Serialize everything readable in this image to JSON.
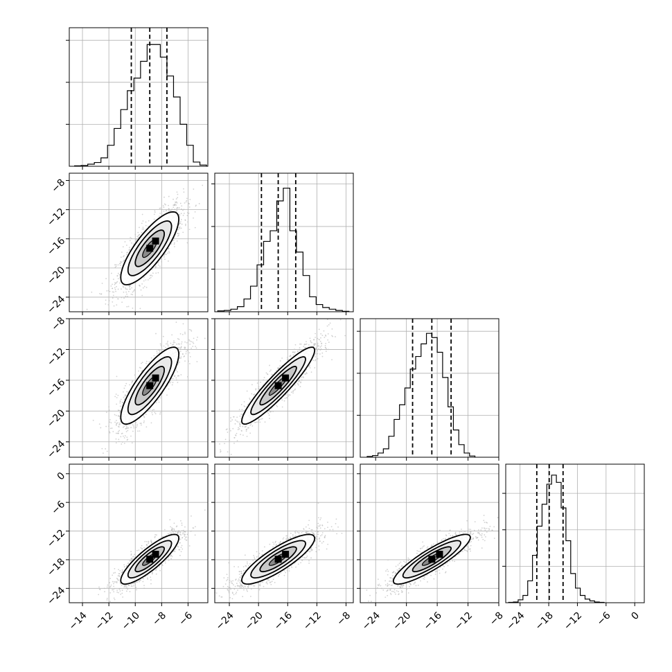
{
  "chart_data": {
    "type": "corner",
    "grid": true,
    "parameters": 4,
    "diagonal_histograms": [
      {
        "index": 0,
        "range": [
          -15,
          -4.5
        ],
        "bin_edges": [
          -14.6,
          -14.1,
          -13.6,
          -13.1,
          -12.6,
          -12.1,
          -11.6,
          -11.1,
          -10.6,
          -10.1,
          -9.6,
          -9.1,
          -8.6,
          -8.1,
          -7.6,
          -7.1,
          -6.6,
          -6.1,
          -5.6,
          -5.1,
          -4.6
        ],
        "counts": [
          2,
          4,
          10,
          18,
          40,
          100,
          180,
          270,
          360,
          420,
          500,
          580,
          580,
          520,
          430,
          330,
          200,
          100,
          20,
          6
        ],
        "ylim": [
          0,
          660
        ],
        "quantiles": [
          -10.3,
          -8.9,
          -7.6
        ]
      },
      {
        "index": 1,
        "range": [
          -26,
          -7
        ],
        "bin_edges": [
          -25.6,
          -24.7,
          -23.8,
          -22.9,
          -22.0,
          -21.1,
          -20.2,
          -19.3,
          -18.4,
          -17.5,
          -16.6,
          -15.7,
          -14.8,
          -13.9,
          -13.0,
          -12.1,
          -11.2,
          -10.3,
          -9.4,
          -8.5,
          -7.6
        ],
        "counts": [
          4,
          6,
          12,
          24,
          60,
          120,
          220,
          330,
          380,
          520,
          580,
          380,
          280,
          170,
          70,
          34,
          20,
          12,
          6,
          2
        ],
        "ylim": [
          0,
          650
        ],
        "quantiles": [
          -19.6,
          -17.3,
          -14.9
        ]
      },
      {
        "index": 2,
        "range": [
          -26,
          -8
        ],
        "bin_edges": [
          -25.1,
          -24.4,
          -23.7,
          -23.0,
          -22.3,
          -21.6,
          -20.9,
          -20.2,
          -19.5,
          -18.8,
          -18.1,
          -17.4,
          -16.7,
          -16.0,
          -15.3,
          -14.6,
          -13.9,
          -13.2,
          -12.5,
          -11.8,
          -11.1
        ],
        "counts": [
          4,
          8,
          20,
          40,
          100,
          180,
          250,
          330,
          420,
          480,
          540,
          590,
          570,
          500,
          380,
          240,
          130,
          60,
          20,
          6
        ],
        "ylim": [
          0,
          660
        ],
        "quantiles": [
          -19.2,
          -16.7,
          -14.2
        ]
      },
      {
        "index": 3,
        "range": [
          -27,
          2
        ],
        "bin_edges": [
          -26.4,
          -25.4,
          -24.4,
          -23.4,
          -22.4,
          -21.4,
          -20.4,
          -19.4,
          -18.4,
          -17.4,
          -16.4,
          -15.4,
          -14.4,
          -13.4,
          -12.4,
          -11.4,
          -10.4,
          -9.4,
          -8.4,
          -7.4,
          -6.4
        ],
        "counts": [
          2,
          4,
          16,
          40,
          120,
          260,
          420,
          540,
          650,
          700,
          660,
          520,
          340,
          160,
          80,
          40,
          20,
          10,
          4,
          2
        ],
        "ylim": [
          0,
          760
        ],
        "quantiles": [
          -20.5,
          -17.9,
          -15.0
        ]
      }
    ],
    "axes": [
      {
        "index": 0,
        "range": [
          -15,
          -4.5
        ],
        "ticks": [
          -14,
          -12,
          -10,
          -8,
          -6
        ],
        "tick_labels": [
          "−14",
          "−12",
          "−10",
          "−8",
          "−6"
        ]
      },
      {
        "index": 1,
        "range": [
          -26,
          -7
        ],
        "ticks": [
          -24,
          -20,
          -16,
          -12,
          -8
        ],
        "tick_labels": [
          "−24",
          "−20",
          "−16",
          "−12",
          "−8"
        ]
      },
      {
        "index": 2,
        "range": [
          -26,
          -8
        ],
        "ticks": [
          -24,
          -20,
          -16,
          -12,
          -8
        ],
        "tick_labels": [
          "−24",
          "−20",
          "−16",
          "−12",
          "−8"
        ]
      },
      {
        "index": 3,
        "range": [
          -27,
          2
        ],
        "ticks": [
          -24,
          -18,
          -12,
          -6,
          0
        ],
        "tick_labels": [
          "−24",
          "−18",
          "−12",
          "−6",
          "0"
        ]
      }
    ],
    "scatter_panels": [
      {
        "row": 1,
        "col": 0,
        "center": [
          -8.9,
          -17.3
        ],
        "sd": [
          1.1,
          2.5
        ],
        "rho": 0.8
      },
      {
        "row": 2,
        "col": 0,
        "center": [
          -8.9,
          -16.7
        ],
        "sd": [
          1.1,
          2.5
        ],
        "rho": 0.82
      },
      {
        "row": 2,
        "col": 1,
        "center": [
          -17.3,
          -16.7
        ],
        "sd": [
          2.5,
          2.5
        ],
        "rho": 0.92
      },
      {
        "row": 3,
        "col": 0,
        "center": [
          -8.9,
          -17.9
        ],
        "sd": [
          1.1,
          2.6
        ],
        "rho": 0.85
      },
      {
        "row": 3,
        "col": 1,
        "center": [
          -17.3,
          -17.9
        ],
        "sd": [
          2.5,
          2.6
        ],
        "rho": 0.84
      },
      {
        "row": 3,
        "col": 2,
        "center": [
          -16.7,
          -17.9
        ],
        "sd": [
          2.5,
          2.6
        ],
        "rho": 0.88
      }
    ],
    "contour_levels_sigma": [
      0.5,
      1.0,
      1.5,
      2.0
    ],
    "colors": {
      "line": "#000000",
      "grid": "#b0b0b0",
      "points": "#bdbdbd",
      "fill_light": "#ffffff",
      "fill_mid": "#c8c8c8",
      "fill_dark": "#4a4a4a",
      "peak": "#000000"
    }
  }
}
